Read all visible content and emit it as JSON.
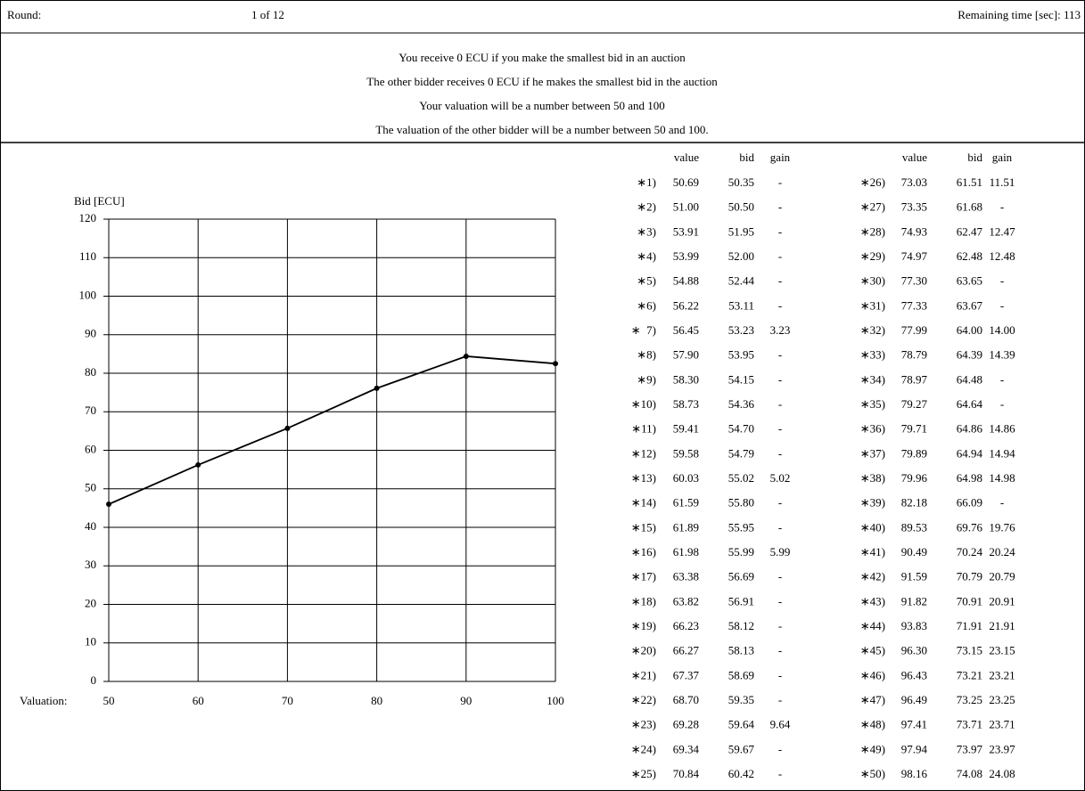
{
  "header": {
    "round_label": "Round:",
    "round_value": "1 of 12",
    "time": "Remaining time [sec]: 113"
  },
  "instructions": [
    "You receive 0 ECU if you make the smallest bid in an auction",
    "The other bidder receives 0 ECU if he makes the smallest bid in the auction",
    "Your valuation will be a number between 50 and 100",
    "The valuation of the other bidder will be a number between 50 and 100."
  ],
  "chart_data": {
    "type": "line",
    "ylabel": "Bid [ECU]",
    "xlabel": "Valuation:",
    "x": [
      50,
      60,
      70,
      80,
      90,
      100
    ],
    "values": [
      46.0,
      56.2,
      65.7,
      76.1,
      84.4,
      82.5
    ],
    "color": "#000000",
    "xlim": [
      50,
      100
    ],
    "xticks": [
      50,
      60,
      70,
      80,
      90,
      100
    ],
    "ylim": [
      0,
      120
    ],
    "yticks": [
      0,
      10,
      20,
      30,
      40,
      50,
      60,
      70,
      80,
      90,
      100,
      110,
      120
    ],
    "grid": true
  },
  "tables": [
    {
      "header": [
        "value",
        "bid",
        "gain"
      ],
      "rows": [
        [
          "∗1)",
          "50.69",
          "50.35",
          "-"
        ],
        [
          "∗2)",
          "51.00",
          "50.50",
          "-"
        ],
        [
          "∗3)",
          "53.91",
          "51.95",
          "-"
        ],
        [
          "∗4)",
          "53.99",
          "52.00",
          "-"
        ],
        [
          "∗5)",
          "54.88",
          "52.44",
          "-"
        ],
        [
          "∗6)",
          "56.22",
          "53.11",
          "-"
        ],
        [
          "∗  7)",
          "56.45",
          "53.23",
          "3.23"
        ],
        [
          "∗8)",
          "57.90",
          "53.95",
          "-"
        ],
        [
          "∗9)",
          "58.30",
          "54.15",
          "-"
        ],
        [
          "∗10)",
          "58.73",
          "54.36",
          "-"
        ],
        [
          "∗11)",
          "59.41",
          "54.70",
          "-"
        ],
        [
          "∗12)",
          "59.58",
          "54.79",
          "-"
        ],
        [
          "∗13)",
          "60.03",
          "55.02",
          "5.02"
        ],
        [
          "∗14)",
          "61.59",
          "55.80",
          "-"
        ],
        [
          "∗15)",
          "61.89",
          "55.95",
          "-"
        ],
        [
          "∗16)",
          "61.98",
          "55.99",
          "5.99"
        ],
        [
          "∗17)",
          "63.38",
          "56.69",
          "-"
        ],
        [
          "∗18)",
          "63.82",
          "56.91",
          "-"
        ],
        [
          "∗19)",
          "66.23",
          "58.12",
          "-"
        ],
        [
          "∗20)",
          "66.27",
          "58.13",
          "-"
        ],
        [
          "∗21)",
          "67.37",
          "58.69",
          "-"
        ],
        [
          "∗22)",
          "68.70",
          "59.35",
          "-"
        ],
        [
          "∗23)",
          "69.28",
          "59.64",
          "9.64"
        ],
        [
          "∗24)",
          "69.34",
          "59.67",
          "-"
        ],
        [
          "∗25)",
          "70.84",
          "60.42",
          "-"
        ]
      ]
    },
    {
      "header": [
        "value",
        "bid",
        "gain"
      ],
      "rows": [
        [
          "∗26)",
          "73.03",
          "61.51",
          "11.51"
        ],
        [
          "∗27)",
          "73.35",
          "61.68",
          "-"
        ],
        [
          "∗28)",
          "74.93",
          "62.47",
          "12.47"
        ],
        [
          "∗29)",
          "74.97",
          "62.48",
          "12.48"
        ],
        [
          "∗30)",
          "77.30",
          "63.65",
          "-"
        ],
        [
          "∗31)",
          "77.33",
          "63.67",
          "-"
        ],
        [
          "∗32)",
          "77.99",
          "64.00",
          "14.00"
        ],
        [
          "∗33)",
          "78.79",
          "64.39",
          "14.39"
        ],
        [
          "∗34)",
          "78.97",
          "64.48",
          "-"
        ],
        [
          "∗35)",
          "79.27",
          "64.64",
          "-"
        ],
        [
          "∗36)",
          "79.71",
          "64.86",
          "14.86"
        ],
        [
          "∗37)",
          "79.89",
          "64.94",
          "14.94"
        ],
        [
          "∗38)",
          "79.96",
          "64.98",
          "14.98"
        ],
        [
          "∗39)",
          "82.18",
          "66.09",
          "-"
        ],
        [
          "∗40)",
          "89.53",
          "69.76",
          "19.76"
        ],
        [
          "∗41)",
          "90.49",
          "70.24",
          "20.24"
        ],
        [
          "∗42)",
          "91.59",
          "70.79",
          "20.79"
        ],
        [
          "∗43)",
          "91.82",
          "70.91",
          "20.91"
        ],
        [
          "∗44)",
          "93.83",
          "71.91",
          "21.91"
        ],
        [
          "∗45)",
          "96.30",
          "73.15",
          "23.15"
        ],
        [
          "∗46)",
          "96.43",
          "73.21",
          "23.21"
        ],
        [
          "∗47)",
          "96.49",
          "73.25",
          "23.25"
        ],
        [
          "∗48)",
          "97.41",
          "73.71",
          "23.71"
        ],
        [
          "∗49)",
          "97.94",
          "73.97",
          "23.97"
        ],
        [
          "∗50)",
          "98.16",
          "74.08",
          "24.08"
        ]
      ]
    }
  ]
}
